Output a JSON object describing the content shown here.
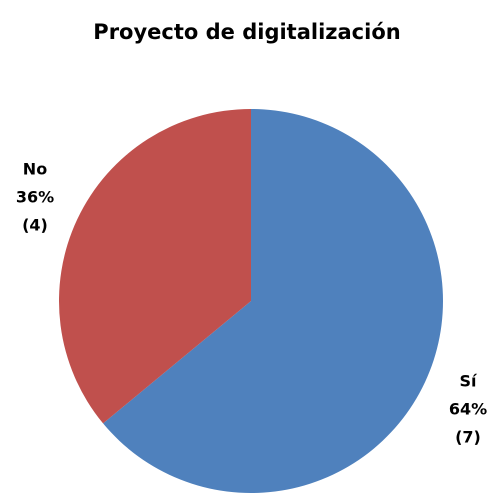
{
  "chart_data": {
    "type": "pie",
    "title": "Proyecto de digitalización",
    "categories": [
      "Sí",
      "No"
    ],
    "values": [
      64,
      36
    ],
    "value_labels": [
      "64%",
      "36%"
    ],
    "count_labels": [
      "(7)",
      "(4)"
    ],
    "colors": [
      "#4f81bd",
      "#c0504d"
    ]
  }
}
